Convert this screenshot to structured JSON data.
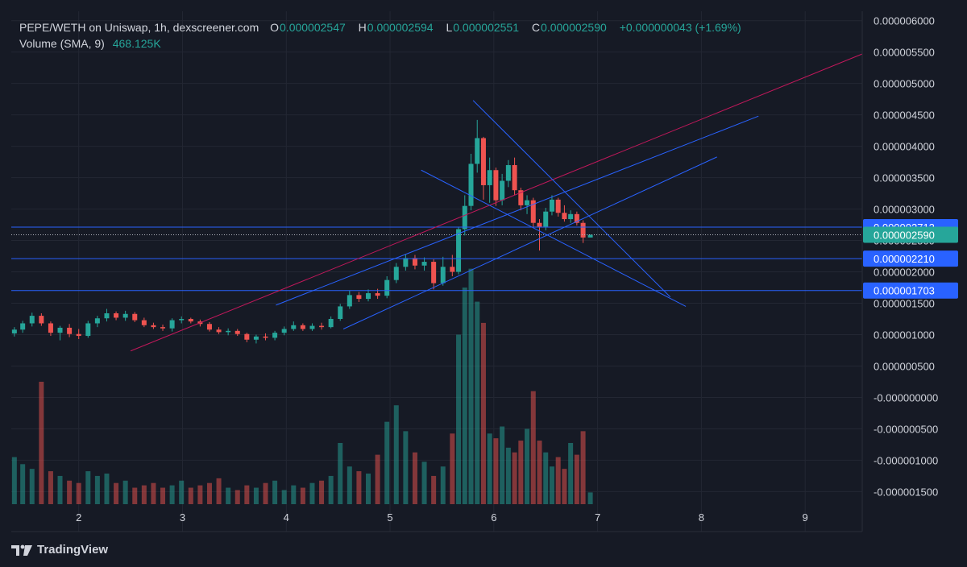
{
  "header": {
    "symbol": "PEPE/WETH on Uniswap, 1h, dexscreener.com",
    "o_label": "O",
    "o_value": "0.000002547",
    "h_label": "H",
    "h_value": "0.000002594",
    "l_label": "L",
    "l_value": "0.000002551",
    "c_label": "C",
    "c_value": "0.000002590",
    "change": "+0.000000043 (+1.69%)",
    "volume_label": "Volume (SMA, 9)",
    "volume_value": "468.125K"
  },
  "brand": {
    "name": "TradingView",
    "icon": "tradingview-logo-icon"
  },
  "colors": {
    "background": "#161a25",
    "up": "#26a69a",
    "down": "#ef5350",
    "trendline_blue": "#2962ff",
    "trendline_red": "#c2185b",
    "label_blue": "#2962ff",
    "label_green": "#26a69a",
    "axis_text": "#d1d4dc"
  },
  "chart_data": {
    "type": "candlestick",
    "title": "PEPE/WETH on Uniswap, 1h, dexscreener.com",
    "y_axis": {
      "tick_labels": [
        "0.000006000",
        "0.000005500",
        "0.000005000",
        "0.000004500",
        "0.000004000",
        "0.000003500",
        "0.000003000",
        "0.000002500",
        "0.000002000",
        "0.000001500",
        "0.000001000",
        "0.000000500",
        "-0.000000000",
        "-0.000000500",
        "-0.000001000",
        "-0.000001500"
      ],
      "tick_values": [
        6e-06,
        5.5e-06,
        5e-06,
        4.5e-06,
        4e-06,
        3.5e-06,
        3e-06,
        2.5e-06,
        2e-06,
        1.5e-06,
        1e-06,
        5e-07,
        0,
        -5e-07,
        -1e-06,
        -1.5e-06
      ],
      "range": [
        -1.7e-06,
        6.15e-06
      ]
    },
    "x_axis": {
      "tick_labels": [
        "2",
        "3",
        "4",
        "5",
        "6",
        "7",
        "8",
        "9"
      ],
      "tick_values": [
        2,
        3,
        4,
        5,
        6,
        7,
        8,
        9
      ],
      "range": [
        1.35,
        9.55
      ]
    },
    "horizontal_levels": [
      {
        "price": 2.712e-06,
        "label": "0.000002712",
        "style": "line",
        "tag": "blue"
      },
      {
        "price": 2.59e-06,
        "label": "0.000002590",
        "style": "dotted",
        "tag": "green"
      },
      {
        "price": 2.21e-06,
        "label": "0.000002210",
        "style": "line",
        "tag": "blue"
      },
      {
        "price": 1.703e-06,
        "label": "0.000001703",
        "style": "line",
        "tag": "blue"
      }
    ],
    "trendlines": [
      {
        "color": "red",
        "start": [
          2.5,
          7.4e-07
        ],
        "end": [
          9.55,
          5.47e-06
        ]
      },
      {
        "color": "blue",
        "start": [
          3.9,
          1.47e-06
        ],
        "end": [
          8.55,
          4.48e-06
        ]
      },
      {
        "color": "blue",
        "start": [
          4.55,
          1.09e-06
        ],
        "end": [
          8.15,
          3.83e-06
        ]
      },
      {
        "color": "blue",
        "start": [
          5.8,
          4.73e-06
        ],
        "end": [
          7.7,
          1.6e-06
        ]
      },
      {
        "color": "blue",
        "start": [
          5.3,
          3.62e-06
        ],
        "end": [
          7.85,
          1.45e-06
        ]
      }
    ],
    "candles": [
      {
        "x": 1.38,
        "o": 1.02e-06,
        "h": 1.12e-06,
        "l": 9.7e-07,
        "c": 1.08e-06
      },
      {
        "x": 1.46,
        "o": 1.08e-06,
        "h": 1.22e-06,
        "l": 1.03e-06,
        "c": 1.18e-06
      },
      {
        "x": 1.55,
        "o": 1.18e-06,
        "h": 1.35e-06,
        "l": 1.13e-06,
        "c": 1.3e-06
      },
      {
        "x": 1.64,
        "o": 1.3e-06,
        "h": 1.34e-06,
        "l": 1.14e-06,
        "c": 1.18e-06
      },
      {
        "x": 1.73,
        "o": 1.18e-06,
        "h": 1.21e-06,
        "l": 9.8e-07,
        "c": 1.03e-06
      },
      {
        "x": 1.82,
        "o": 1.03e-06,
        "h": 1.14e-06,
        "l": 9.1e-07,
        "c": 1.11e-06
      },
      {
        "x": 1.91,
        "o": 1.11e-06,
        "h": 1.17e-06,
        "l": 9.6e-07,
        "c": 1.01e-06
      },
      {
        "x": 2.0,
        "o": 1.01e-06,
        "h": 1.09e-06,
        "l": 9.3e-07,
        "c": 9.8e-07
      },
      {
        "x": 2.09,
        "o": 9.8e-07,
        "h": 1.22e-06,
        "l": 9.5e-07,
        "c": 1.18e-06
      },
      {
        "x": 2.18,
        "o": 1.18e-06,
        "h": 1.3e-06,
        "l": 1.12e-06,
        "c": 1.26e-06
      },
      {
        "x": 2.27,
        "o": 1.26e-06,
        "h": 1.41e-06,
        "l": 1.21e-06,
        "c": 1.34e-06
      },
      {
        "x": 2.36,
        "o": 1.34e-06,
        "h": 1.37e-06,
        "l": 1.23e-06,
        "c": 1.27e-06
      },
      {
        "x": 2.45,
        "o": 1.27e-06,
        "h": 1.38e-06,
        "l": 1.22e-06,
        "c": 1.33e-06
      },
      {
        "x": 2.54,
        "o": 1.33e-06,
        "h": 1.36e-06,
        "l": 1.2e-06,
        "c": 1.23e-06
      },
      {
        "x": 2.63,
        "o": 1.23e-06,
        "h": 1.27e-06,
        "l": 1.12e-06,
        "c": 1.15e-06
      },
      {
        "x": 2.72,
        "o": 1.15e-06,
        "h": 1.19e-06,
        "l": 1.09e-06,
        "c": 1.12e-06
      },
      {
        "x": 2.81,
        "o": 1.12e-06,
        "h": 1.16e-06,
        "l": 1.06e-06,
        "c": 1.1e-06
      },
      {
        "x": 2.9,
        "o": 1.1e-06,
        "h": 1.26e-06,
        "l": 1.05e-06,
        "c": 1.23e-06
      },
      {
        "x": 2.99,
        "o": 1.23e-06,
        "h": 1.29e-06,
        "l": 1.18e-06,
        "c": 1.25e-06
      },
      {
        "x": 3.08,
        "o": 1.25e-06,
        "h": 1.27e-06,
        "l": 1.18e-06,
        "c": 1.21e-06
      },
      {
        "x": 3.17,
        "o": 1.21e-06,
        "h": 1.24e-06,
        "l": 1.13e-06,
        "c": 1.17e-06
      },
      {
        "x": 3.26,
        "o": 1.17e-06,
        "h": 1.2e-06,
        "l": 1.05e-06,
        "c": 1.08e-06
      },
      {
        "x": 3.35,
        "o": 1.08e-06,
        "h": 1.12e-06,
        "l": 1.01e-06,
        "c": 1.04e-06
      },
      {
        "x": 3.44,
        "o": 1.04e-06,
        "h": 1.1e-06,
        "l": 9.9e-07,
        "c": 1.06e-06
      },
      {
        "x": 3.53,
        "o": 1.06e-06,
        "h": 1.09e-06,
        "l": 9.8e-07,
        "c": 1.01e-06
      },
      {
        "x": 3.62,
        "o": 1.01e-06,
        "h": 1.03e-06,
        "l": 8.8e-07,
        "c": 9.2e-07
      },
      {
        "x": 3.71,
        "o": 9.2e-07,
        "h": 1e-06,
        "l": 8.6e-07,
        "c": 9.7e-07
      },
      {
        "x": 3.8,
        "o": 9.7e-07,
        "h": 1.02e-06,
        "l": 9.1e-07,
        "c": 9.5e-07
      },
      {
        "x": 3.89,
        "o": 9.5e-07,
        "h": 1.06e-06,
        "l": 9.1e-07,
        "c": 1.03e-06
      },
      {
        "x": 3.98,
        "o": 1.03e-06,
        "h": 1.13e-06,
        "l": 9.9e-07,
        "c": 1.09e-06
      },
      {
        "x": 4.07,
        "o": 1.09e-06,
        "h": 1.21e-06,
        "l": 1.06e-06,
        "c": 1.15e-06
      },
      {
        "x": 4.16,
        "o": 1.15e-06,
        "h": 1.18e-06,
        "l": 1.06e-06,
        "c": 1.09e-06
      },
      {
        "x": 4.25,
        "o": 1.09e-06,
        "h": 1.18e-06,
        "l": 1.06e-06,
        "c": 1.14e-06
      },
      {
        "x": 4.34,
        "o": 1.14e-06,
        "h": 1.19e-06,
        "l": 1.08e-06,
        "c": 1.12e-06
      },
      {
        "x": 4.43,
        "o": 1.12e-06,
        "h": 1.29e-06,
        "l": 1.1e-06,
        "c": 1.25e-06
      },
      {
        "x": 4.52,
        "o": 1.25e-06,
        "h": 1.49e-06,
        "l": 1.22e-06,
        "c": 1.45e-06
      },
      {
        "x": 4.61,
        "o": 1.45e-06,
        "h": 1.7e-06,
        "l": 1.41e-06,
        "c": 1.63e-06
      },
      {
        "x": 4.7,
        "o": 1.63e-06,
        "h": 1.68e-06,
        "l": 1.52e-06,
        "c": 1.57e-06
      },
      {
        "x": 4.79,
        "o": 1.57e-06,
        "h": 1.72e-06,
        "l": 1.53e-06,
        "c": 1.66e-06
      },
      {
        "x": 4.88,
        "o": 1.66e-06,
        "h": 1.73e-06,
        "l": 1.57e-06,
        "c": 1.62e-06
      },
      {
        "x": 4.97,
        "o": 1.62e-06,
        "h": 1.93e-06,
        "l": 1.58e-06,
        "c": 1.87e-06
      },
      {
        "x": 5.06,
        "o": 1.87e-06,
        "h": 2.14e-06,
        "l": 1.82e-06,
        "c": 2.08e-06
      },
      {
        "x": 5.15,
        "o": 2.08e-06,
        "h": 2.28e-06,
        "l": 2.02e-06,
        "c": 2.22e-06
      },
      {
        "x": 5.24,
        "o": 2.22e-06,
        "h": 2.27e-06,
        "l": 2.04e-06,
        "c": 2.1e-06
      },
      {
        "x": 5.33,
        "o": 2.1e-06,
        "h": 2.23e-06,
        "l": 2.02e-06,
        "c": 2.16e-06
      },
      {
        "x": 5.42,
        "o": 2.16e-06,
        "h": 2.2e-06,
        "l": 1.72e-06,
        "c": 1.82e-06
      },
      {
        "x": 5.51,
        "o": 1.82e-06,
        "h": 2.24e-06,
        "l": 1.78e-06,
        "c": 2.08e-06
      },
      {
        "x": 5.6,
        "o": 2.08e-06,
        "h": 2.27e-06,
        "l": 1.93e-06,
        "c": 2e-06
      },
      {
        "x": 5.66,
        "o": 2e-06,
        "h": 2.72e-06,
        "l": 1.96e-06,
        "c": 2.68e-06
      },
      {
        "x": 5.72,
        "o": 2.68e-06,
        "h": 3.22e-06,
        "l": 2.58e-06,
        "c": 3.05e-06
      },
      {
        "x": 5.78,
        "o": 3.05e-06,
        "h": 3.88e-06,
        "l": 2.98e-06,
        "c": 3.72e-06
      },
      {
        "x": 5.84,
        "o": 3.72e-06,
        "h": 4.42e-06,
        "l": 3.58e-06,
        "c": 4.13e-06
      },
      {
        "x": 5.9,
        "o": 4.13e-06,
        "h": 4.15e-06,
        "l": 3.15e-06,
        "c": 3.38e-06
      },
      {
        "x": 5.96,
        "o": 3.38e-06,
        "h": 3.82e-06,
        "l": 3.1e-06,
        "c": 3.62e-06
      },
      {
        "x": 6.02,
        "o": 3.62e-06,
        "h": 3.66e-06,
        "l": 3.05e-06,
        "c": 3.14e-06
      },
      {
        "x": 6.08,
        "o": 3.14e-06,
        "h": 3.56e-06,
        "l": 3.06e-06,
        "c": 3.45e-06
      },
      {
        "x": 6.14,
        "o": 3.45e-06,
        "h": 3.78e-06,
        "l": 3.35e-06,
        "c": 3.7e-06
      },
      {
        "x": 6.2,
        "o": 3.7e-06,
        "h": 3.82e-06,
        "l": 3.22e-06,
        "c": 3.3e-06
      },
      {
        "x": 6.26,
        "o": 3.3e-06,
        "h": 3.34e-06,
        "l": 2.98e-06,
        "c": 3.06e-06
      },
      {
        "x": 6.32,
        "o": 3.06e-06,
        "h": 3.22e-06,
        "l": 2.92e-06,
        "c": 3.14e-06
      },
      {
        "x": 6.38,
        "o": 3.14e-06,
        "h": 3.18e-06,
        "l": 2.7e-06,
        "c": 2.78e-06
      },
      {
        "x": 6.44,
        "o": 2.78e-06,
        "h": 2.84e-06,
        "l": 2.34e-06,
        "c": 2.72e-06
      },
      {
        "x": 6.5,
        "o": 2.72e-06,
        "h": 3.02e-06,
        "l": 2.66e-06,
        "c": 2.96e-06
      },
      {
        "x": 6.56,
        "o": 2.96e-06,
        "h": 3.22e-06,
        "l": 2.9e-06,
        "c": 3.15e-06
      },
      {
        "x": 6.62,
        "o": 3.15e-06,
        "h": 3.18e-06,
        "l": 2.88e-06,
        "c": 2.94e-06
      },
      {
        "x": 6.68,
        "o": 2.94e-06,
        "h": 3.06e-06,
        "l": 2.8e-06,
        "c": 2.84e-06
      },
      {
        "x": 6.74,
        "o": 2.84e-06,
        "h": 2.98e-06,
        "l": 2.78e-06,
        "c": 2.92e-06
      },
      {
        "x": 6.8,
        "o": 2.92e-06,
        "h": 2.96e-06,
        "l": 2.74e-06,
        "c": 2.78e-06
      },
      {
        "x": 6.86,
        "o": 2.78e-06,
        "h": 2.82e-06,
        "l": 2.46e-06,
        "c": 2.547e-06
      },
      {
        "x": 6.93,
        "o": 2.547e-06,
        "h": 2.594e-06,
        "l": 2.551e-06,
        "c": 2.59e-06
      }
    ],
    "volume": {
      "label": "Volume (SMA, 9)",
      "current": "468.125K",
      "baseline_price": -1.7e-06,
      "max_height_price": 2.05e-06,
      "bars": [
        0.2,
        0.17,
        0.15,
        0.52,
        0.14,
        0.12,
        0.1,
        0.09,
        0.14,
        0.12,
        0.13,
        0.09,
        0.1,
        0.07,
        0.08,
        0.09,
        0.07,
        0.08,
        0.1,
        0.07,
        0.08,
        0.09,
        0.11,
        0.07,
        0.06,
        0.08,
        0.07,
        0.09,
        0.1,
        0.06,
        0.08,
        0.07,
        0.09,
        0.1,
        0.12,
        0.26,
        0.16,
        0.14,
        0.13,
        0.21,
        0.35,
        0.42,
        0.31,
        0.22,
        0.18,
        0.12,
        0.16,
        0.3,
        0.72,
        0.92,
        1.0,
        0.86,
        0.77,
        0.3,
        0.28,
        0.33,
        0.24,
        0.22,
        0.27,
        0.32,
        0.48,
        0.27,
        0.22,
        0.16,
        0.2,
        0.15,
        0.26,
        0.21,
        0.31,
        0.05
      ]
    }
  }
}
